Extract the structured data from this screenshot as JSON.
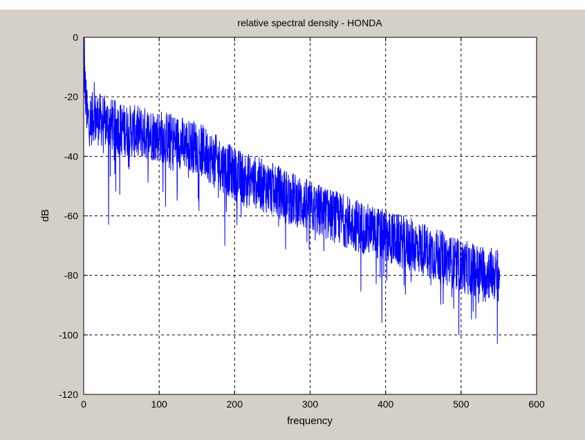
{
  "chart_data": {
    "type": "line",
    "title": "relative spectral density - HONDA",
    "xlabel": "frequency",
    "ylabel": "dB",
    "xlim": [
      0,
      600
    ],
    "ylim": [
      -120,
      0
    ],
    "xticks": [
      "0",
      "100",
      "200",
      "300",
      "400",
      "500",
      "600"
    ],
    "yticks": [
      "0",
      "-20",
      "-40",
      "-60",
      "-80",
      "-100",
      "-120"
    ],
    "grid": true,
    "series": [
      {
        "color": "#0000ff",
        "x_range": [
          0,
          551
        ],
        "trend": {
          "x": [
            0,
            5,
            15,
            50,
            100,
            150,
            200,
            250,
            300,
            350,
            400,
            450,
            500,
            551
          ],
          "y": [
            -10,
            -28,
            -27,
            -31,
            -33,
            -37,
            -46,
            -51,
            -57,
            -62,
            -67,
            -71,
            -77,
            -80
          ]
        },
        "spread_db": 18,
        "notable_points": [
          {
            "x": 1,
            "y": 0
          },
          {
            "x": 14,
            "y": -15
          },
          {
            "x": 33,
            "y": -63
          },
          {
            "x": 187,
            "y": -70
          },
          {
            "x": 395,
            "y": -96
          },
          {
            "x": 497,
            "y": -100
          },
          {
            "x": 548,
            "y": -103
          }
        ]
      }
    ]
  }
}
